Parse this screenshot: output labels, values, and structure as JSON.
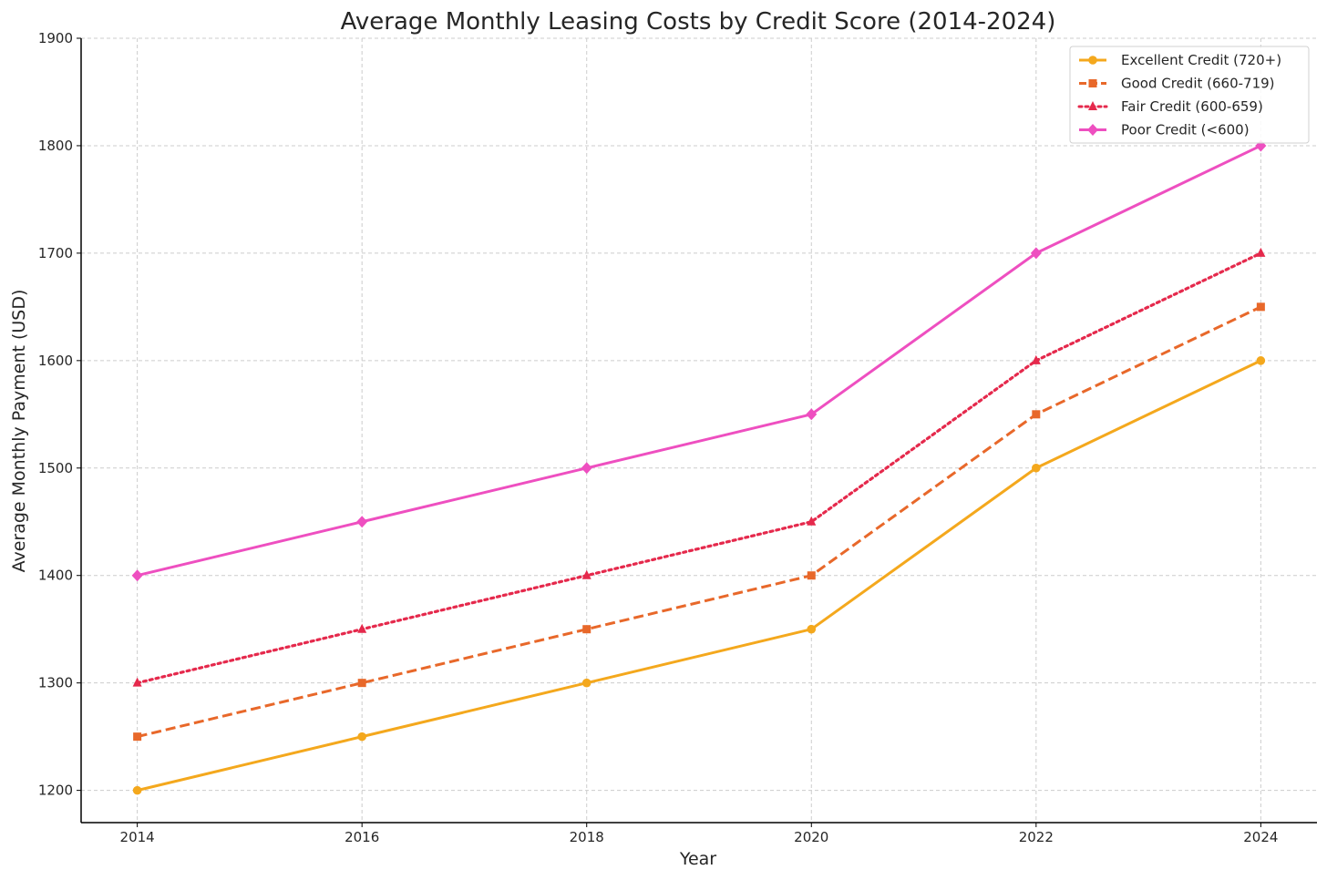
{
  "chart_data": {
    "type": "line",
    "title": "Average Monthly Leasing Costs by Credit Score (2014-2024)",
    "xlabel": "Year",
    "ylabel": "Average Monthly Payment (USD)",
    "x": [
      2014,
      2016,
      2018,
      2020,
      2022,
      2024
    ],
    "x_ticks": [
      "2014",
      "2016",
      "2018",
      "2020",
      "2022",
      "2024"
    ],
    "y_ticks": [
      "1200",
      "1300",
      "1400",
      "1500",
      "1600",
      "1700",
      "1800",
      "1900"
    ],
    "xlim": [
      2013.5,
      2024.5
    ],
    "ylim": [
      1170,
      1900
    ],
    "grid": true,
    "legend_position": "top-right",
    "series": [
      {
        "name": "Excellent Credit (720+)",
        "values": [
          1200,
          1250,
          1300,
          1350,
          1500,
          1600
        ],
        "color": "#f4a81d",
        "line_style": "solid",
        "marker": "circle"
      },
      {
        "name": "Good Credit (660-719)",
        "values": [
          1250,
          1300,
          1350,
          1400,
          1550,
          1650
        ],
        "color": "#e8682a",
        "line_style": "dashed",
        "marker": "square"
      },
      {
        "name": "Fair Credit (600-659)",
        "values": [
          1300,
          1350,
          1400,
          1450,
          1600,
          1700
        ],
        "color": "#e5294c",
        "line_style": "dotted",
        "marker": "triangle"
      },
      {
        "name": "Poor Credit (<600)",
        "values": [
          1400,
          1450,
          1500,
          1550,
          1700,
          1800
        ],
        "color": "#ee4fc0",
        "line_style": "solid",
        "marker": "diamond"
      }
    ]
  }
}
